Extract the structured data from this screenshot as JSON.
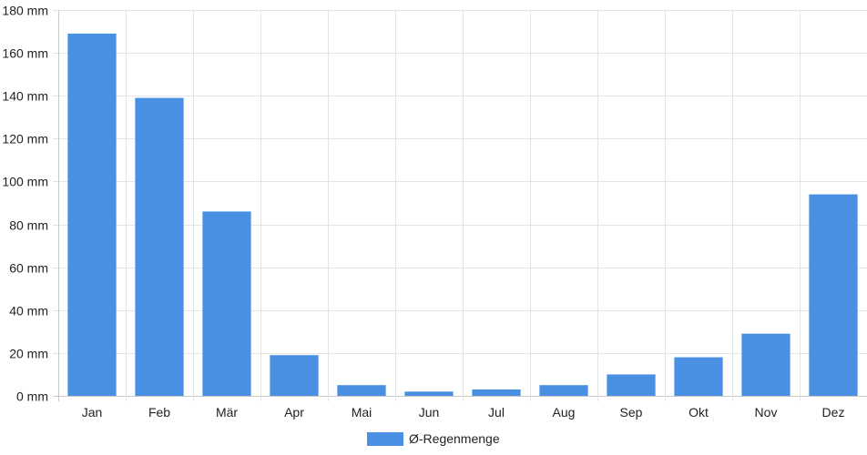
{
  "chart_data": {
    "type": "bar",
    "categories": [
      "Jan",
      "Feb",
      "Mär",
      "Apr",
      "Mai",
      "Jun",
      "Jul",
      "Aug",
      "Sep",
      "Okt",
      "Nov",
      "Dez"
    ],
    "series": [
      {
        "name": "Ø-Regenmenge",
        "color": "#4a90e2",
        "values": [
          169,
          139,
          86,
          19,
          5,
          2,
          3,
          5,
          10,
          18,
          29,
          94
        ]
      }
    ],
    "ylim": [
      0,
      180
    ],
    "yticks": [
      0,
      20,
      40,
      60,
      80,
      100,
      120,
      140,
      160,
      180
    ],
    "ytick_suffix": " mm",
    "grid": true,
    "legend_position": "bottom"
  }
}
